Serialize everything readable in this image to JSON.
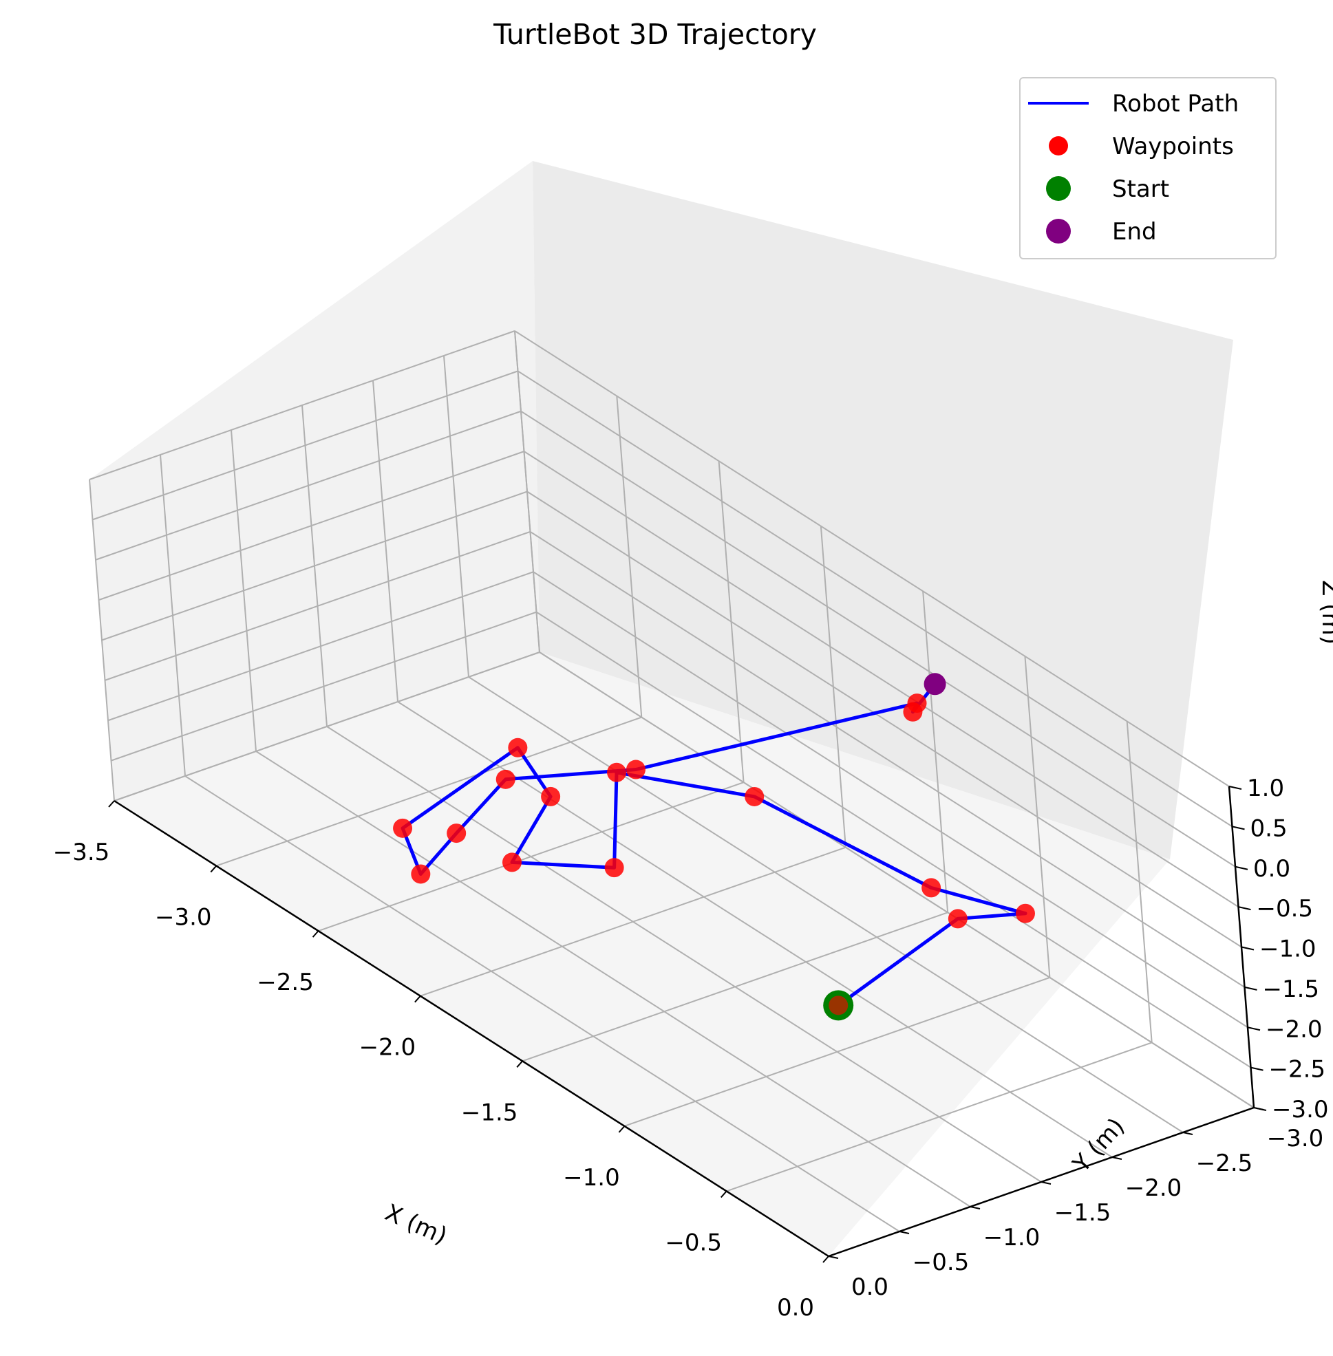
{
  "chart_data": {
    "type": "scatter",
    "title": "TurtleBot 3D Trajectory",
    "xlabel": "X (m)",
    "ylabel": "Y (m)",
    "zlabel": "Z (m)",
    "xlim": [
      -3.5,
      0.0
    ],
    "ylim": [
      -3.0,
      0.0
    ],
    "zlim": [
      -3.0,
      1.0
    ],
    "x_ticks": [
      "−3.5",
      "−3.0",
      "−2.5",
      "−2.0",
      "−1.5",
      "−1.0",
      "−0.5",
      "0.0"
    ],
    "y_ticks": [
      "0.0",
      "−0.5",
      "−1.0",
      "−1.5",
      "−2.0",
      "−2.5",
      "−3.0"
    ],
    "z_ticks": [
      "1.0",
      "0.5",
      "0.0",
      "−0.5",
      "−1.0",
      "−1.5",
      "−2.0",
      "−2.5",
      "−3.0"
    ],
    "grid": true,
    "legend_position": "top-right",
    "colors": {
      "path": "#0000ff",
      "waypoints": "#ff0000",
      "start": "#008000",
      "end": "#800080"
    },
    "legend": [
      {
        "label": "Robot Path",
        "marker": "line"
      },
      {
        "label": "Waypoints",
        "marker": "dot"
      },
      {
        "label": "Start",
        "marker": "dot"
      },
      {
        "label": "End",
        "marker": "dot"
      }
    ],
    "series": [
      {
        "name": "Robot Path",
        "kind": "line",
        "points": [
          [
            0.0,
            -0.2,
            0.0
          ],
          [
            -0.1,
            -1.2,
            0.3
          ],
          [
            -0.05,
            -1.6,
            0.2
          ],
          [
            -0.3,
            -1.3,
            0.3
          ],
          [
            -1.1,
            -1.2,
            0.2
          ],
          [
            -1.5,
            -0.8,
            0.1
          ],
          [
            -1.4,
            -0.6,
            -0.8
          ],
          [
            -2.3,
            -1.1,
            -2.5
          ],
          [
            -2.6,
            -1.8,
            -2.6
          ],
          [
            -2.9,
            -2.0,
            -2.6
          ],
          [
            -2.7,
            -0.9,
            -2.6
          ],
          [
            -2.4,
            -0.6,
            -2.5
          ],
          [
            -2.5,
            -1.0,
            -2.4
          ],
          [
            -2.6,
            -1.5,
            -2.2
          ],
          [
            -2.3,
            -2.0,
            -1.9
          ],
          [
            -1.2,
            -2.5,
            0.4
          ],
          [
            -1.0,
            -2.2,
            0.8
          ],
          [
            -1.1,
            -2.5,
            0.8
          ]
        ]
      },
      {
        "name": "Waypoints",
        "kind": "scatter",
        "points": [
          [
            -0.1,
            -1.2,
            0.3
          ],
          [
            -0.05,
            -1.6,
            0.2
          ],
          [
            -0.3,
            -1.3,
            0.3
          ],
          [
            -1.1,
            -1.2,
            0.2
          ],
          [
            -1.5,
            -0.8,
            0.1
          ],
          [
            -1.4,
            -0.6,
            -0.8
          ],
          [
            -2.3,
            -1.1,
            -2.5
          ],
          [
            -2.6,
            -1.8,
            -2.6
          ],
          [
            -2.9,
            -2.0,
            -2.6
          ],
          [
            -2.7,
            -0.9,
            -2.6
          ],
          [
            -2.4,
            -0.6,
            -2.5
          ],
          [
            -2.5,
            -1.0,
            -2.4
          ],
          [
            -2.6,
            -1.5,
            -2.2
          ],
          [
            -2.3,
            -2.0,
            -1.9
          ],
          [
            -1.2,
            -2.5,
            0.4
          ],
          [
            -1.0,
            -2.2,
            0.8
          ]
        ]
      },
      {
        "name": "Start",
        "kind": "scatter",
        "points": [
          [
            0.0,
            -0.2,
            0.0
          ]
        ]
      },
      {
        "name": "End",
        "kind": "scatter",
        "points": [
          [
            -1.1,
            -2.5,
            0.8
          ]
        ]
      }
    ]
  }
}
